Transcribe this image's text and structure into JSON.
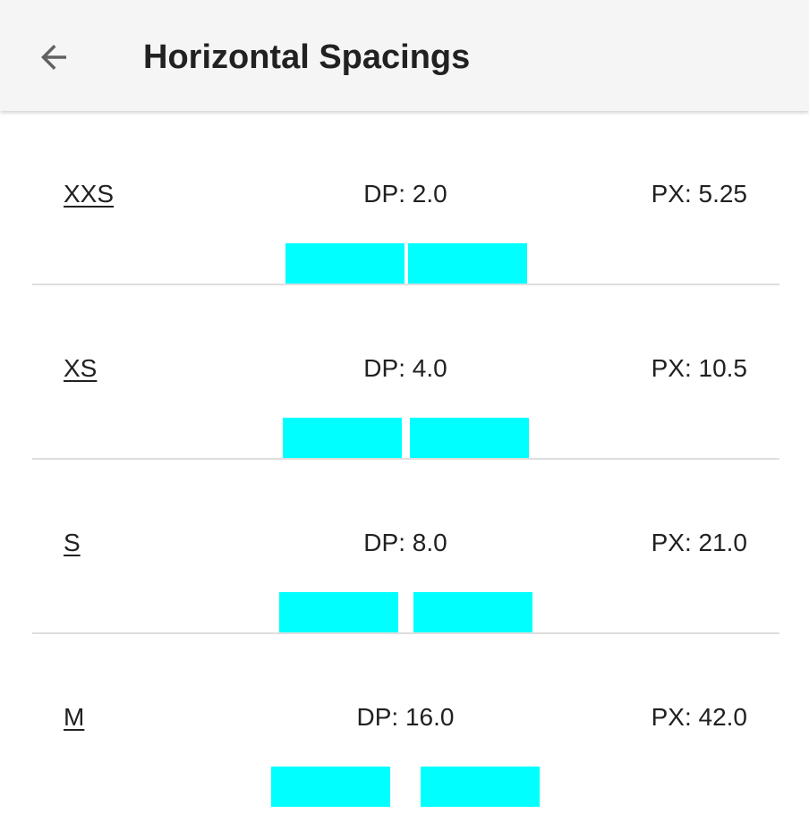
{
  "header": {
    "back_icon": "arrow-back-icon",
    "title": "Horizontal Spacings"
  },
  "colors": {
    "block": "#00FFFF",
    "app_bar": "#F5F5F5",
    "divider": "#DEDEDE"
  },
  "spacings": [
    {
      "name": "XXS",
      "dp": "DP: 2.0",
      "px": "PX: 5.25"
    },
    {
      "name": "XS",
      "dp": "DP: 4.0",
      "px": "PX: 10.5"
    },
    {
      "name": "S",
      "dp": "DP: 8.0",
      "px": "PX: 21.0"
    },
    {
      "name": "M",
      "dp": "DP: 16.0",
      "px": "PX: 42.0"
    }
  ]
}
